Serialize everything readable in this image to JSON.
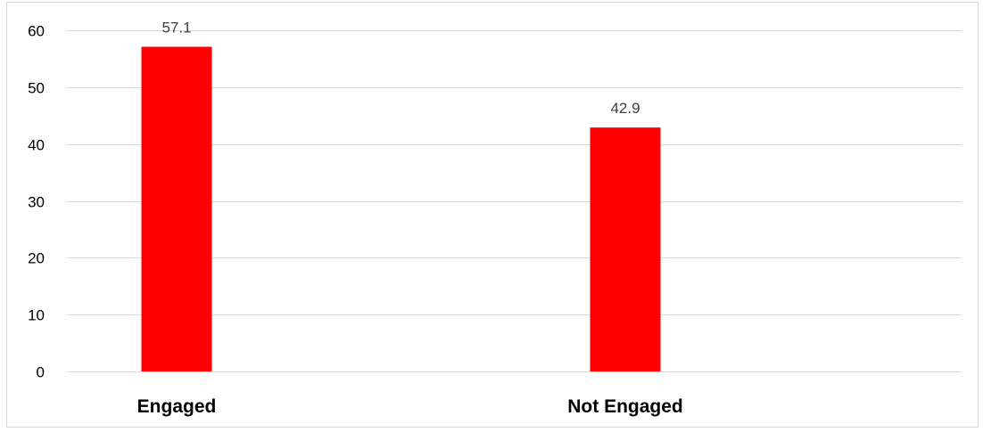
{
  "chart_data": {
    "type": "bar",
    "categories": [
      "Engaged",
      "Not Engaged"
    ],
    "values": [
      57.1,
      42.9
    ],
    "data_labels": [
      "57.1",
      "42.9"
    ],
    "title": "",
    "xlabel": "",
    "ylabel": "",
    "ylim": [
      0,
      60
    ],
    "yticks": [
      0,
      10,
      20,
      30,
      40,
      50,
      60
    ],
    "ytick_labels": [
      "0",
      "10",
      "20",
      "30",
      "40",
      "50",
      "60"
    ],
    "grid": true,
    "legend": "none",
    "bar_color": "#ff0000",
    "grid_color": "#d9d9d9"
  }
}
